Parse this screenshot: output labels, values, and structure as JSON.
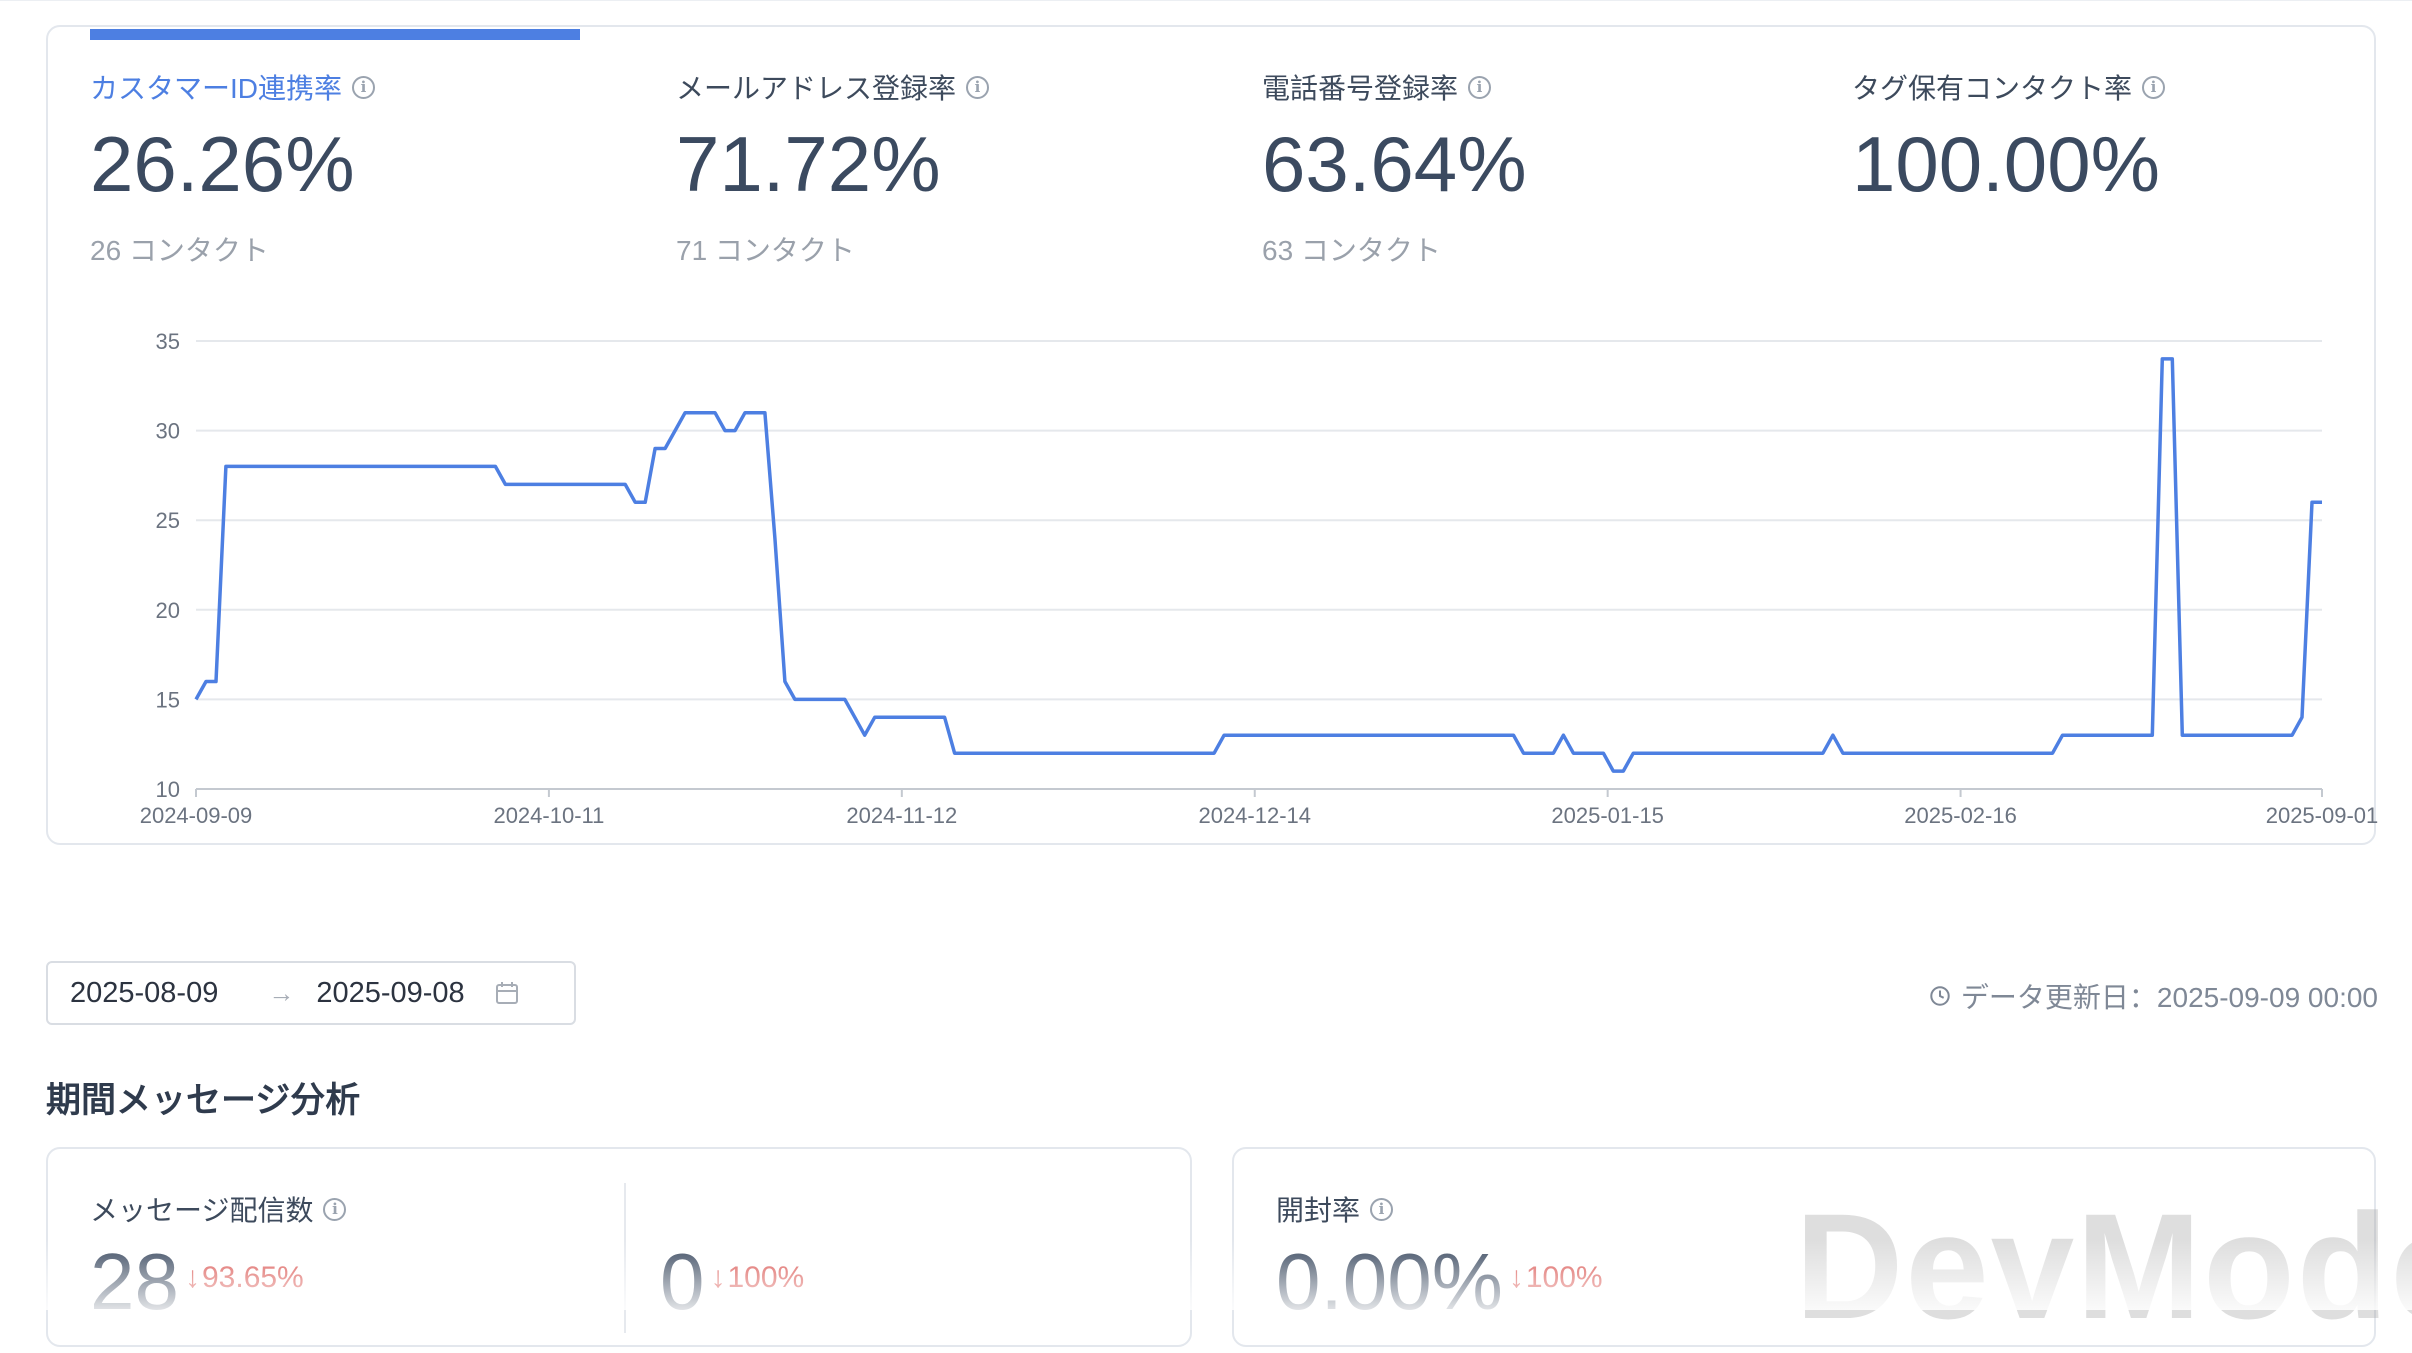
{
  "metrics": [
    {
      "title": "カスタマーID連携率",
      "value": "26.26%",
      "sub": "26 コンタクト",
      "active": true
    },
    {
      "title": "メールアドレス登録率",
      "value": "71.72%",
      "sub": "71 コンタクト"
    },
    {
      "title": "電話番号登録率",
      "value": "63.64%",
      "sub": "63 コンタクト"
    },
    {
      "title": "タグ保有コンタクト率",
      "value": "100.00%",
      "sub": ""
    }
  ],
  "chart_data": {
    "type": "line",
    "title": "",
    "xlabel": "",
    "ylabel": "",
    "ylim": [
      10,
      35
    ],
    "y_ticks": [
      "35",
      "30",
      "25",
      "20",
      "15",
      "10"
    ],
    "x_tick_labels": [
      "2024-09-09",
      "2024-10-11",
      "2024-11-12",
      "2024-12-14",
      "2025-01-15",
      "2025-02-16",
      "2025-09-01"
    ],
    "grid": true,
    "color": "#4d7fe2",
    "series": [
      {
        "values": [
          15,
          16,
          16,
          28,
          28,
          28,
          28,
          28,
          28,
          28,
          28,
          28,
          28,
          28,
          28,
          28,
          28,
          28,
          28,
          28,
          28,
          28,
          28,
          28,
          28,
          28,
          28,
          28,
          28,
          28,
          28,
          27,
          27,
          27,
          27,
          27,
          27,
          27,
          27,
          27,
          27,
          27,
          27,
          27,
          26,
          26,
          29,
          29,
          30,
          31,
          31,
          31,
          31,
          30,
          30,
          31,
          31,
          31,
          24,
          16,
          15,
          15,
          15,
          15,
          15,
          15,
          14,
          13,
          14,
          14,
          14,
          14,
          14,
          14,
          14,
          14,
          12,
          12,
          12,
          12,
          12,
          12,
          12,
          12,
          12,
          12,
          12,
          12,
          12,
          12,
          12,
          12,
          12,
          12,
          12,
          12,
          12,
          12,
          12,
          12,
          12,
          12,
          12,
          13,
          13,
          13,
          13,
          13,
          13,
          13,
          13,
          13,
          13,
          13,
          13,
          13,
          13,
          13,
          13,
          13,
          13,
          13,
          13,
          13,
          13,
          13,
          13,
          13,
          13,
          13,
          13,
          13,
          13,
          12,
          12,
          12,
          12,
          13,
          12,
          12,
          12,
          12,
          11,
          11,
          12,
          12,
          12,
          12,
          12,
          12,
          12,
          12,
          12,
          12,
          12,
          12,
          12,
          12,
          12,
          12,
          12,
          12,
          12,
          12,
          13,
          12,
          12,
          12,
          12,
          12,
          12,
          12,
          12,
          12,
          12,
          12,
          12,
          12,
          12,
          12,
          12,
          12,
          12,
          12,
          12,
          12,
          12,
          13,
          13,
          13,
          13,
          13,
          13,
          13,
          13,
          13,
          13,
          34,
          34,
          13,
          13,
          13,
          13,
          13,
          13,
          13,
          13,
          13,
          13,
          13,
          13,
          14,
          26,
          26
        ]
      }
    ]
  },
  "date_range": {
    "start": "2025-08-09",
    "arrow": "→",
    "end": "2025-09-08"
  },
  "update_text": "データ更新日：2025-09-09 00:00",
  "section_title": "期間メッセージ分析",
  "cards": {
    "delivery": {
      "title": "メッセージ配信数",
      "value1": "28",
      "delta1": "93.65%",
      "value2": "0",
      "delta2": "100%"
    },
    "open": {
      "title": "開封率",
      "value": "0.00%",
      "delta": "100%"
    }
  },
  "watermark": "DevMode",
  "icons": {
    "info": "info-circle-icon",
    "calendar": "calendar-icon",
    "clock": "clock-icon",
    "down": "arrow-down-icon"
  }
}
